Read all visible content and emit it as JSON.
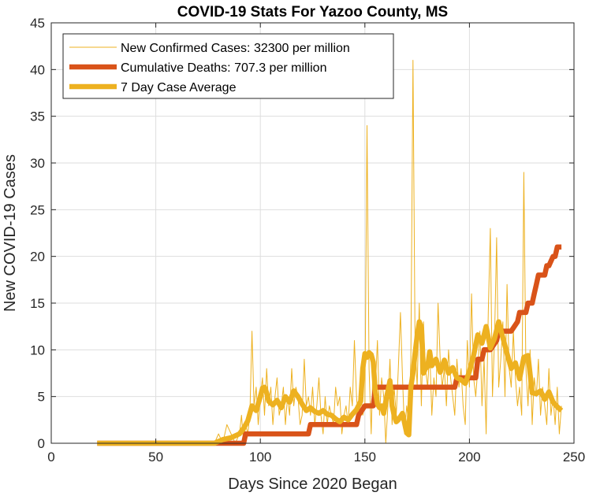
{
  "chart_data": {
    "type": "line",
    "title": "COVID-19 Stats For Yazoo County, MS",
    "xlabel": "Days Since 2020 Began",
    "ylabel": "New COVID-19 Cases",
    "xlim": [
      0,
      250
    ],
    "ylim": [
      0,
      45
    ],
    "xticks": [
      0,
      50,
      100,
      150,
      200,
      250
    ],
    "yticks": [
      0,
      5,
      10,
      15,
      20,
      25,
      30,
      35,
      40,
      45
    ],
    "grid": true,
    "legend_position": "top-left",
    "series": [
      {
        "name": "New Confirmed Cases: 32300 per million",
        "color": "#EDB120",
        "style": "thin",
        "x": [
          22,
          30,
          40,
          50,
          60,
          70,
          78,
          80,
          82,
          84,
          86,
          88,
          90,
          91,
          92,
          93,
          94,
          95,
          96,
          97,
          98,
          99,
          100,
          101,
          102,
          103,
          104,
          105,
          106,
          107,
          108,
          109,
          110,
          111,
          112,
          113,
          114,
          115,
          116,
          117,
          118,
          119,
          120,
          121,
          122,
          123,
          124,
          125,
          126,
          127,
          128,
          129,
          130,
          131,
          132,
          133,
          134,
          135,
          136,
          137,
          138,
          139,
          140,
          141,
          142,
          143,
          144,
          145,
          146,
          147,
          148,
          149,
          150,
          151,
          152,
          153,
          154,
          155,
          156,
          157,
          158,
          159,
          160,
          161,
          162,
          163,
          164,
          165,
          166,
          167,
          168,
          169,
          170,
          171,
          172,
          173,
          174,
          175,
          176,
          177,
          178,
          179,
          180,
          181,
          182,
          183,
          184,
          185,
          186,
          187,
          188,
          189,
          190,
          191,
          192,
          193,
          194,
          195,
          196,
          197,
          198,
          199,
          200,
          201,
          202,
          203,
          204,
          205,
          206,
          207,
          208,
          209,
          210,
          211,
          212,
          213,
          214,
          215,
          216,
          217,
          218,
          219,
          220,
          221,
          222,
          223,
          224,
          225,
          226,
          227,
          228,
          229,
          230,
          231,
          232,
          233,
          234,
          235,
          236,
          237,
          238,
          239,
          240,
          241,
          242,
          243,
          244
        ],
        "y": [
          0,
          0,
          0,
          0,
          0,
          0,
          0,
          1,
          0,
          2,
          1,
          0,
          1,
          3,
          0,
          2,
          1,
          3,
          12,
          4,
          6,
          2,
          5,
          7,
          3,
          8,
          4,
          6,
          2,
          5,
          7,
          3,
          4,
          6,
          2,
          5,
          3,
          8,
          4,
          6,
          5,
          2,
          3,
          9,
          4,
          5,
          3,
          6,
          2,
          4,
          7,
          3,
          1,
          5,
          2,
          4,
          3,
          2,
          6,
          4,
          5,
          1,
          3,
          4,
          2,
          6,
          4,
          11,
          5,
          2,
          6,
          3,
          4,
          34,
          8,
          1,
          9,
          6,
          11,
          3,
          7,
          5,
          0,
          4,
          9,
          2,
          6,
          3,
          8,
          14,
          7,
          1,
          4,
          2,
          9,
          41,
          11,
          6,
          15,
          4,
          13,
          8,
          6,
          10,
          3,
          7,
          5,
          15,
          9,
          6,
          8,
          4,
          10,
          7,
          5,
          3,
          9,
          6,
          8,
          4,
          2,
          11,
          6,
          16,
          7,
          5,
          8,
          12,
          4,
          9,
          1,
          14,
          23,
          5,
          11,
          22,
          6,
          9,
          13,
          5,
          17,
          8,
          6,
          12,
          7,
          4,
          6,
          3,
          29,
          8,
          4,
          10,
          2,
          7,
          5,
          9,
          3,
          6,
          4,
          2,
          8,
          3,
          5,
          2,
          6,
          1,
          4
        ]
      },
      {
        "name": "Cumulative Deaths: 707.3 per million",
        "color": "#D95319",
        "style": "thick",
        "x": [
          22,
          30,
          40,
          50,
          60,
          70,
          80,
          90,
          92,
          93,
          100,
          110,
          120,
          123,
          124,
          130,
          140,
          146,
          147,
          150,
          154,
          155,
          160,
          165,
          170,
          175,
          180,
          185,
          190,
          193,
          194,
          200,
          203,
          204,
          206,
          207,
          210,
          213,
          214,
          216,
          217,
          220,
          223,
          224,
          227,
          228,
          230,
          231,
          232,
          233,
          235,
          236,
          237,
          238,
          240,
          241,
          242,
          243,
          244
        ],
        "y": [
          0,
          0,
          0,
          0,
          0,
          0,
          0,
          0,
          0,
          1,
          1,
          1,
          1,
          1,
          2,
          2,
          2,
          2,
          3,
          4,
          4,
          6,
          6,
          6,
          6,
          6,
          6,
          6,
          6,
          6,
          7,
          7,
          7,
          9,
          9,
          10,
          10,
          11,
          12,
          12,
          12,
          12,
          13,
          14,
          14,
          15,
          15,
          16,
          17,
          18,
          18,
          18,
          19,
          19,
          20,
          20,
          21,
          21,
          21
        ]
      },
      {
        "name": "7 Day Case Average",
        "color": "#EDB120",
        "style": "thick",
        "x": [
          22,
          30,
          40,
          50,
          60,
          70,
          78,
          82,
          86,
          90,
          92,
          94,
          96,
          98,
          100,
          101,
          102,
          103,
          104,
          106,
          108,
          110,
          112,
          114,
          116,
          118,
          120,
          122,
          124,
          126,
          128,
          130,
          132,
          134,
          136,
          138,
          140,
          142,
          144,
          146,
          148,
          149,
          150,
          151,
          152,
          153,
          154,
          155,
          156,
          157,
          158,
          159,
          160,
          161,
          162,
          163,
          164,
          165,
          166,
          168,
          170,
          171,
          172,
          173,
          174,
          175,
          176,
          177,
          178,
          179,
          180,
          181,
          182,
          184,
          186,
          188,
          190,
          192,
          194,
          196,
          198,
          200,
          202,
          204,
          206,
          208,
          210,
          212,
          214,
          216,
          218,
          220,
          222,
          224,
          226,
          228,
          230,
          232,
          234,
          236,
          238,
          240,
          242,
          244
        ],
        "y": [
          0,
          0,
          0,
          0,
          0,
          0,
          0,
          0.4,
          0.6,
          1,
          1.6,
          2.4,
          4,
          3.5,
          5,
          5.9,
          6,
          5.4,
          4.5,
          4.1,
          4.6,
          3.8,
          5,
          4.4,
          5.6,
          5,
          4.2,
          3.5,
          3.8,
          3.4,
          3.2,
          3.5,
          3.1,
          3,
          2.6,
          2.3,
          2.8,
          2.5,
          3.1,
          3.6,
          4.5,
          8,
          9.6,
          9.2,
          9.7,
          9.5,
          8.7,
          5.5,
          4.2,
          3.8,
          4,
          3.2,
          4.5,
          5.6,
          6.7,
          4,
          3,
          2.3,
          2.5,
          3.2,
          1.1,
          0.9,
          6,
          7.5,
          9.6,
          11.5,
          13,
          12.4,
          7.5,
          8,
          8.2,
          9.8,
          8.3,
          9,
          7.6,
          8.9,
          7.5,
          8.1,
          7,
          6.8,
          6.4,
          7.7,
          9.4,
          11.6,
          10.7,
          12.5,
          10.2,
          11.2,
          13,
          11.3,
          9.6,
          8,
          8.6,
          6.9,
          9.2,
          9.4,
          5.4,
          5.3,
          5.6,
          4.7,
          5.5,
          4.4,
          3.9,
          3.5
        ]
      }
    ]
  }
}
